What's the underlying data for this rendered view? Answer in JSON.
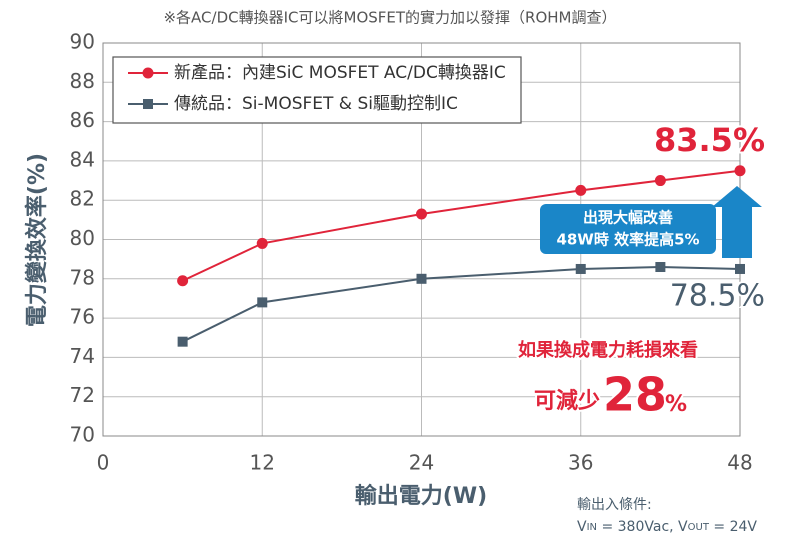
{
  "chart_data": {
    "type": "line",
    "title": "※各AC/DC轉換器IC可以將MOSFET的實力加以發揮（ROHM調查）",
    "x_label": "輸出電力(W)",
    "y_label": "電力變換效率(%)",
    "x": [
      6,
      12,
      24,
      36,
      42,
      48
    ],
    "series": [
      {
        "name": "新產品：內建SiC MOSFET AC/DC轉換器IC",
        "color": "#e0243a",
        "values": [
          77.9,
          79.8,
          81.3,
          82.5,
          83.0,
          83.5
        ]
      },
      {
        "name": "傳統品：Si-MOSFET & Si驅動控制IC",
        "color": "#4a5e6e",
        "values": [
          74.8,
          76.8,
          78.0,
          78.5,
          78.6,
          78.5
        ]
      }
    ],
    "xlim": [
      0,
      48
    ],
    "xticks": [
      0,
      12,
      24,
      36,
      48
    ],
    "ylim": [
      70,
      90
    ],
    "yticks": [
      70,
      72,
      74,
      76,
      78,
      80,
      82,
      84,
      86,
      88,
      90
    ],
    "grid": true,
    "legend": "upper left",
    "annotations": {
      "new_value": "83.5%",
      "old_value": "78.5%",
      "improve_line1": "出現大幅改善",
      "improve_line2": "48W時 效率提高5%",
      "loss_line": "如果換成電力耗損來看",
      "reduce_prefix": "可減少",
      "reduce_number": "28",
      "reduce_unit": "%"
    },
    "conditions": {
      "label": "輸出入條件:",
      "parts": [
        "V",
        "IN",
        " = 380Vac, V",
        "OUT",
        " = 24V"
      ]
    }
  }
}
